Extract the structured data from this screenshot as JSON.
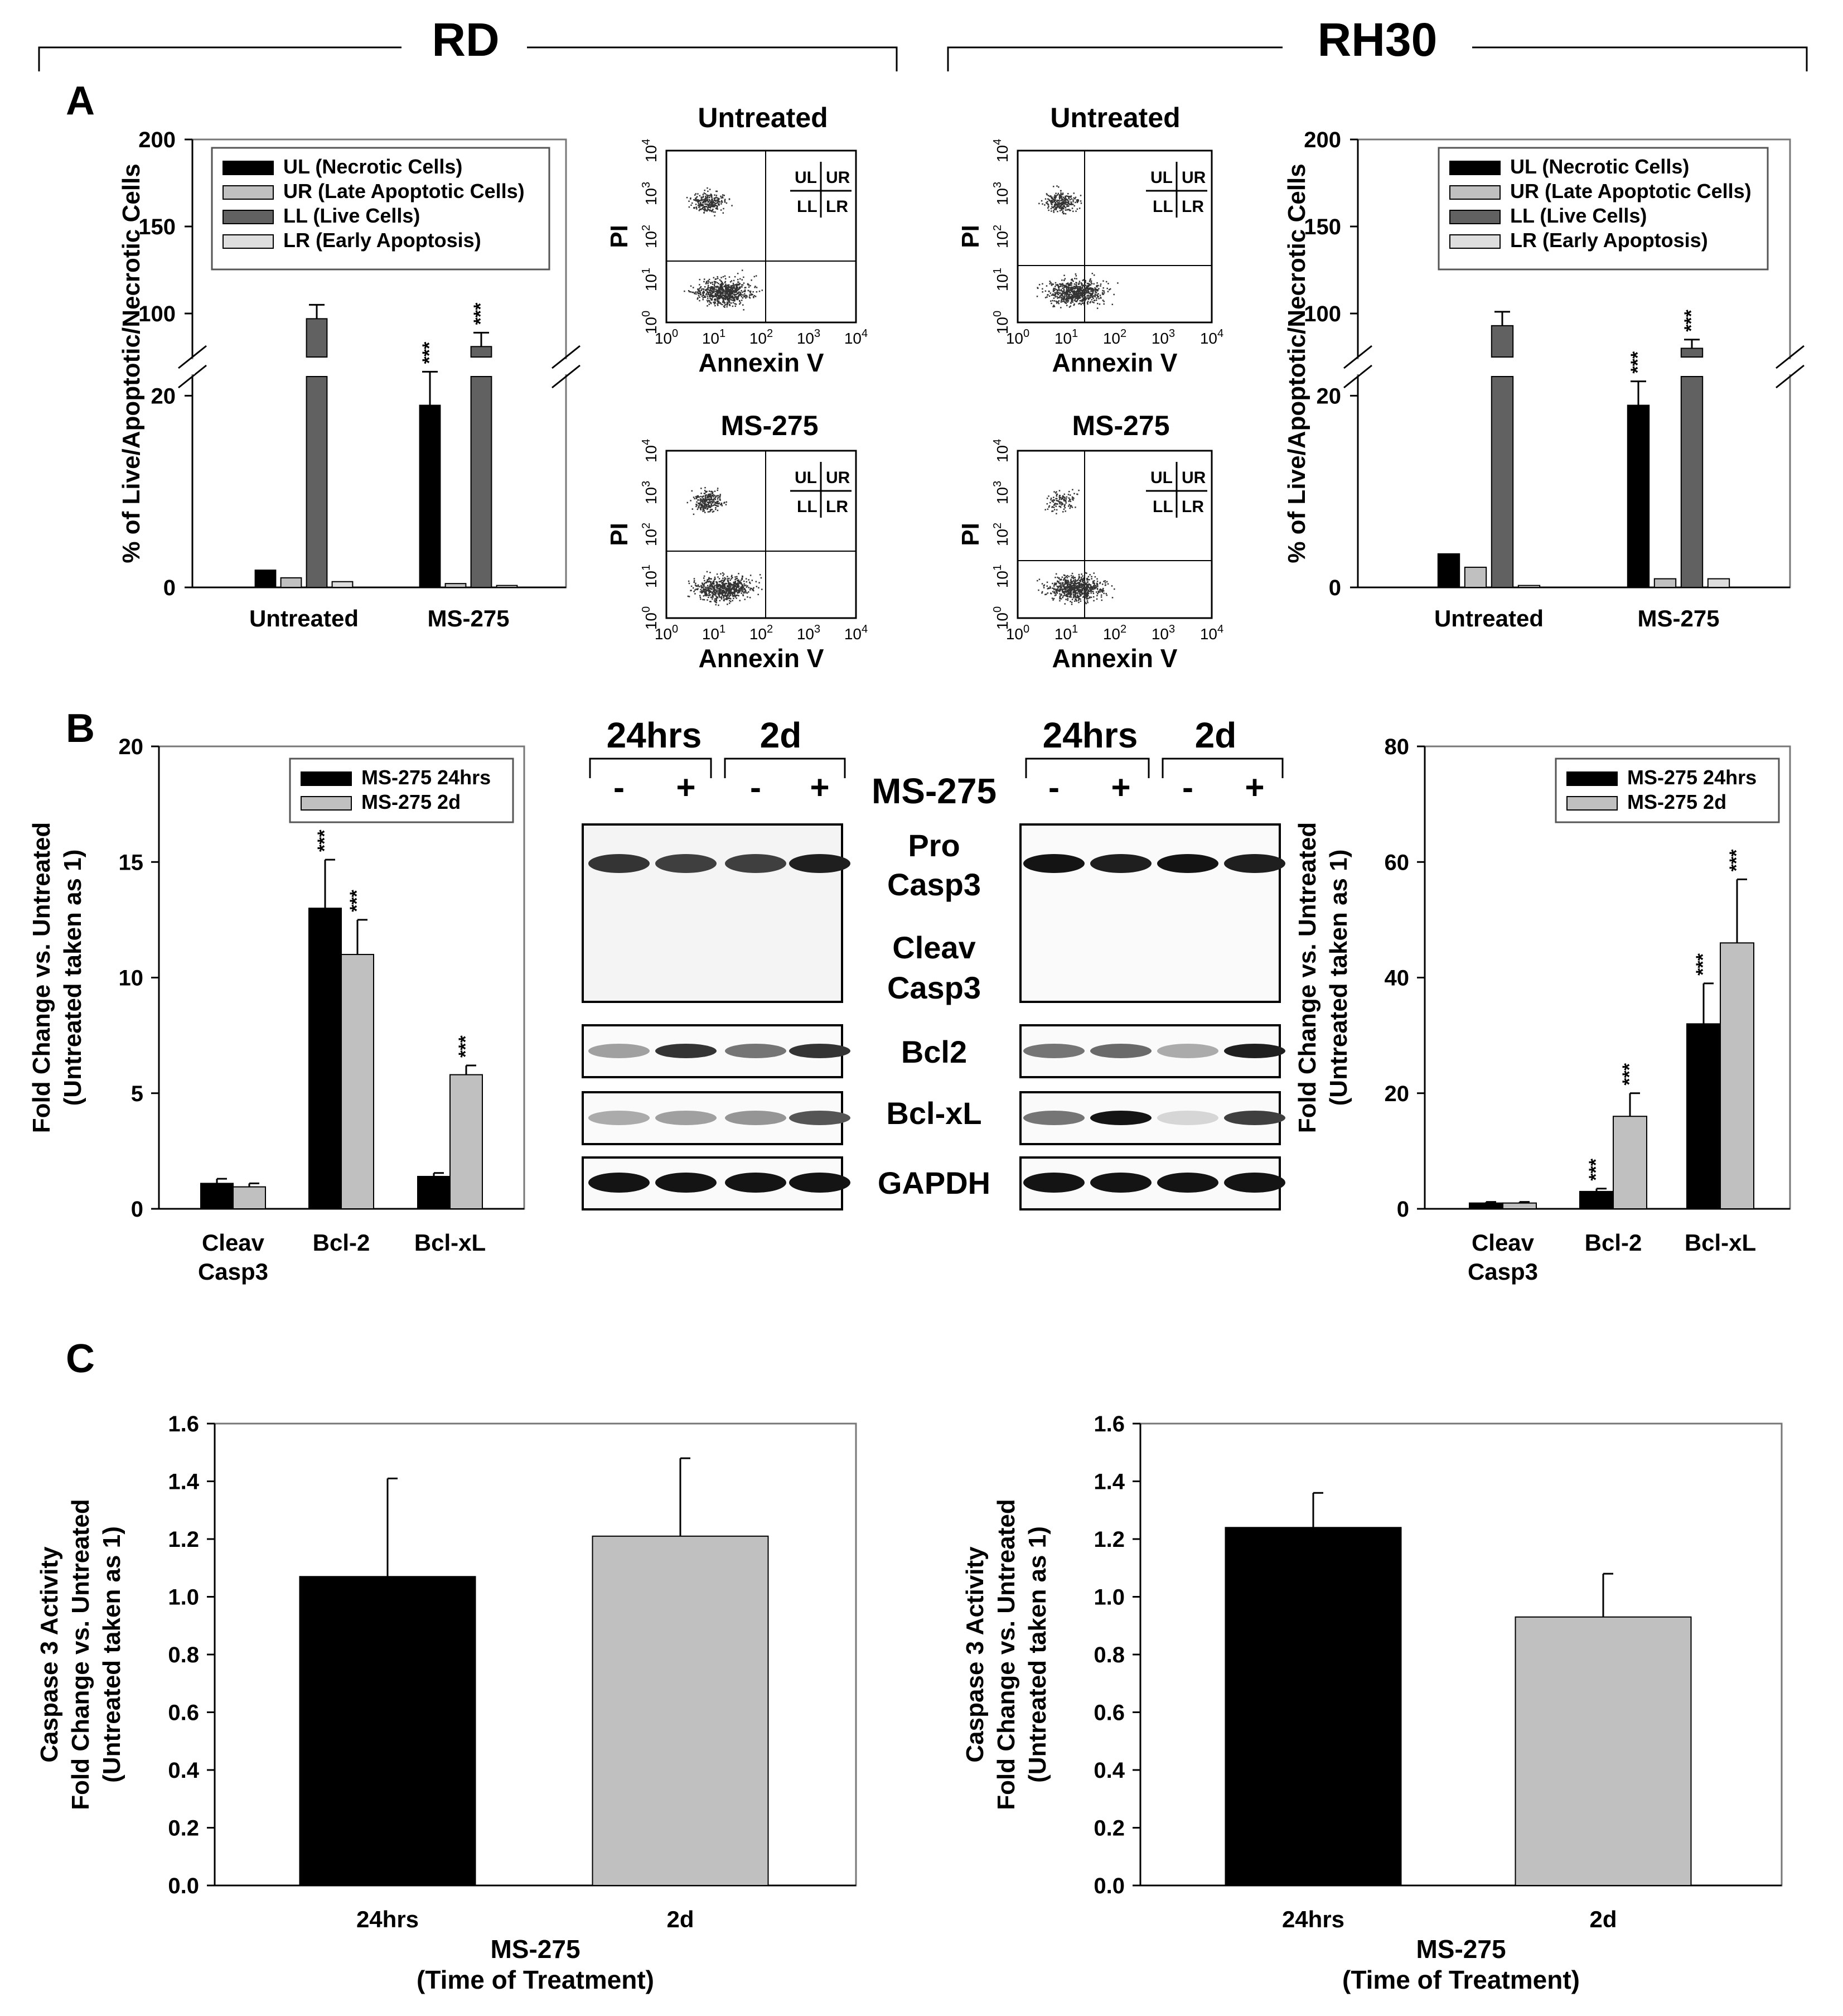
{
  "header": {
    "left_group": "RD",
    "right_group": "RH30"
  },
  "panel_labels": {
    "a": "A",
    "b": "B",
    "c": "C"
  },
  "colors": {
    "black": "#000000",
    "light_gray": "#c0c0c0",
    "dark_gray": "#616161",
    "pale_gray": "#dedede",
    "blot_band": "#1a1a1a"
  },
  "flow": {
    "y_label": "PI",
    "x_label": "Annexin V",
    "quadrants": [
      "UL",
      "UR",
      "LL",
      "LR"
    ],
    "titles": [
      "Untreated",
      "MS-275",
      "Untreated",
      "MS-275"
    ],
    "ticks": [
      "10^0",
      "10^1",
      "10^2",
      "10^3",
      "10^4"
    ]
  },
  "western": {
    "time_labels": [
      "24hrs",
      "2d",
      "24hrs",
      "2d"
    ],
    "signs": [
      "-",
      "+",
      "-",
      "+",
      "-",
      "+",
      "-",
      "+"
    ],
    "treatment_label": "MS-275",
    "row_labels": {
      "pro": "Pro",
      "casp3_a": "Casp3",
      "cleav": "Cleav",
      "casp3_b": "Casp3",
      "bcl2": "Bcl2",
      "bclxl": "Bcl-xL",
      "gapdh": "GAPDH"
    }
  },
  "chart_data": [
    {
      "id": "A_RD",
      "type": "bar",
      "panel": "A",
      "group": "RD",
      "ylabel": "% of Live/Apoptotic/Necrotic Cells",
      "categories": [
        "Untreated",
        "MS-275"
      ],
      "y_break": {
        "lower": [
          0,
          22
        ],
        "upper": [
          75,
          200
        ]
      },
      "yticks_lower": [
        0,
        20
      ],
      "yticks_upper": [
        100,
        150,
        200
      ],
      "series": [
        {
          "name": "UL (Necrotic Cells)",
          "color": "#000000",
          "values": [
            1.8,
            19
          ],
          "errors": [
            0.2,
            3.5
          ],
          "sig": [
            "",
            "***"
          ]
        },
        {
          "name": "UR (Late Apoptotic Cells)",
          "color": "#c0c0c0",
          "values": [
            1.0,
            0.4
          ],
          "errors": [
            0.1,
            0.1
          ],
          "sig": [
            "",
            ""
          ]
        },
        {
          "name": "LL (Live Cells)",
          "color": "#616161",
          "values": [
            97,
            81
          ],
          "errors": [
            8,
            8
          ],
          "sig": [
            "",
            "***"
          ]
        },
        {
          "name": "LR (Early Apoptosis)",
          "color": "#dedede",
          "values": [
            0.6,
            0.2
          ],
          "errors": [
            0.1,
            0.05
          ],
          "sig": [
            "",
            ""
          ]
        }
      ]
    },
    {
      "id": "A_RH30",
      "type": "bar",
      "panel": "A",
      "group": "RH30",
      "ylabel": "% of Live/Apoptotic/Necrotic Cells",
      "categories": [
        "Untreated",
        "MS-275"
      ],
      "y_break": {
        "lower": [
          0,
          22
        ],
        "upper": [
          75,
          200
        ]
      },
      "yticks_lower": [
        0,
        20
      ],
      "yticks_upper": [
        100,
        150,
        200
      ],
      "series": [
        {
          "name": "UL (Necrotic Cells)",
          "color": "#000000",
          "values": [
            3.5,
            19
          ],
          "errors": [
            0.3,
            2.5
          ],
          "sig": [
            "",
            "***"
          ]
        },
        {
          "name": "UR (Late Apoptotic Cells)",
          "color": "#c0c0c0",
          "values": [
            2.1,
            0.9
          ],
          "errors": [
            0.2,
            0.1
          ],
          "sig": [
            "",
            ""
          ]
        },
        {
          "name": "LL (Live Cells)",
          "color": "#616161",
          "values": [
            93,
            80
          ],
          "errors": [
            8,
            5
          ],
          "sig": [
            "",
            "***"
          ]
        },
        {
          "name": "LR (Early Apoptosis)",
          "color": "#dedede",
          "values": [
            0.2,
            0.9
          ],
          "errors": [
            0.05,
            0.1
          ],
          "sig": [
            "",
            ""
          ]
        }
      ]
    },
    {
      "id": "B_RD",
      "type": "bar",
      "panel": "B",
      "group": "RD",
      "ylabel_line1": "Fold Change vs. Untreated",
      "ylabel_line2": "(Untreated taken as 1)",
      "categories": [
        "Cleav Casp3",
        "Bcl-2",
        "Bcl-xL"
      ],
      "ylim": [
        0,
        20
      ],
      "yticks": [
        0,
        5,
        10,
        15,
        20
      ],
      "series": [
        {
          "name": "MS-275 24hrs",
          "color": "#000000",
          "values": [
            1.1,
            13,
            1.4
          ],
          "errors": [
            0.2,
            2.1,
            0.15
          ],
          "sig": [
            "",
            "***",
            ""
          ]
        },
        {
          "name": "MS-275 2d",
          "color": "#c0c0c0",
          "values": [
            0.95,
            11,
            5.8
          ],
          "errors": [
            0.15,
            1.5,
            0.4
          ],
          "sig": [
            "",
            "***",
            "***"
          ]
        }
      ]
    },
    {
      "id": "B_RH30",
      "type": "bar",
      "panel": "B",
      "group": "RH30",
      "ylabel_line1": "Fold Change vs. Untreated",
      "ylabel_line2": "(Untreated taken as 1)",
      "categories": [
        "Cleav Casp3",
        "Bcl-2",
        "Bcl-xL"
      ],
      "ylim": [
        0,
        80
      ],
      "yticks": [
        0,
        20,
        40,
        60,
        80
      ],
      "series": [
        {
          "name": "MS-275 24hrs",
          "color": "#000000",
          "values": [
            1.0,
            3.0,
            32
          ],
          "errors": [
            0.2,
            0.5,
            7
          ],
          "sig": [
            "",
            "***",
            "***"
          ]
        },
        {
          "name": "MS-275 2d",
          "color": "#c0c0c0",
          "values": [
            1.0,
            16,
            46
          ],
          "errors": [
            0.2,
            4,
            11
          ],
          "sig": [
            "",
            "***",
            "***"
          ]
        }
      ]
    },
    {
      "id": "C_RD",
      "type": "bar",
      "panel": "C",
      "group": "RD",
      "ylabel_line1": "Caspase 3 Activity",
      "ylabel_line2": "Fold Change vs. Untreated",
      "ylabel_line3": "(Untreated taken as 1)",
      "xlabel_line1": "MS-275",
      "xlabel_line2": "(Time of Treatment)",
      "categories": [
        "24hrs",
        "2d"
      ],
      "ylim": [
        0,
        1.6
      ],
      "yticks": [
        0.0,
        0.2,
        0.4,
        0.6,
        0.8,
        1.0,
        1.2,
        1.4,
        1.6
      ],
      "values": [
        1.07,
        1.21
      ],
      "errors": [
        0.34,
        0.27
      ],
      "colors": [
        "#000000",
        "#c0c0c0"
      ]
    },
    {
      "id": "C_RH30",
      "type": "bar",
      "panel": "C",
      "group": "RH30",
      "ylabel_line1": "Caspase 3 Activity",
      "ylabel_line2": "Fold Change vs. Untreated",
      "ylabel_line3": "(Untreated taken as 1)",
      "xlabel_line1": "MS-275",
      "xlabel_line2": "(Time of Treatment)",
      "categories": [
        "24hrs",
        "2d"
      ],
      "ylim": [
        0,
        1.6
      ],
      "yticks": [
        0.0,
        0.2,
        0.4,
        0.6,
        0.8,
        1.0,
        1.2,
        1.4,
        1.6
      ],
      "values": [
        1.24,
        0.93
      ],
      "errors": [
        0.12,
        0.15
      ],
      "colors": [
        "#000000",
        "#c0c0c0"
      ]
    }
  ]
}
